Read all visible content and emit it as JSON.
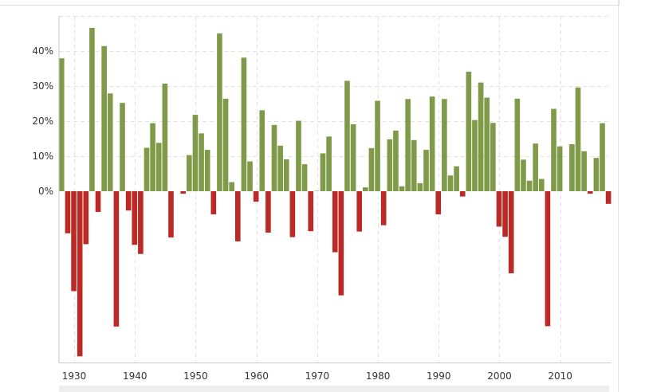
{
  "chart_data": {
    "type": "bar",
    "title": "",
    "xlabel": "",
    "ylabel": "",
    "ylim": [
      -47,
      50
    ],
    "y_ticks": [
      0,
      10,
      20,
      30,
      40
    ],
    "y_tick_labels": [
      "0%",
      "10%",
      "20%",
      "30%",
      "40%"
    ],
    "x_ticks": [
      1930,
      1940,
      1950,
      1960,
      1970,
      1980,
      1990,
      2000,
      2010
    ],
    "x_tick_labels": [
      "1930",
      "1940",
      "1950",
      "1960",
      "1970",
      "1980",
      "1990",
      "2000",
      "2010"
    ],
    "grid": true,
    "colors": {
      "positive": "#7f9a48",
      "negative": "#bb2a25",
      "grid": "#e2e2e2"
    },
    "x": [
      1928,
      1929,
      1930,
      1931,
      1932,
      1933,
      1934,
      1935,
      1936,
      1937,
      1938,
      1939,
      1940,
      1941,
      1942,
      1943,
      1944,
      1945,
      1946,
      1947,
      1948,
      1949,
      1950,
      1951,
      1952,
      1953,
      1954,
      1955,
      1956,
      1957,
      1958,
      1959,
      1960,
      1961,
      1962,
      1963,
      1964,
      1965,
      1966,
      1967,
      1968,
      1969,
      1970,
      1971,
      1972,
      1973,
      1974,
      1975,
      1976,
      1977,
      1978,
      1979,
      1980,
      1981,
      1982,
      1983,
      1984,
      1985,
      1986,
      1987,
      1988,
      1989,
      1990,
      1991,
      1992,
      1993,
      1994,
      1995,
      1996,
      1997,
      1998,
      1999,
      2000,
      2001,
      2002,
      2003,
      2004,
      2005,
      2006,
      2007,
      2008,
      2009,
      2010,
      2011,
      2012,
      2013,
      2014,
      2015,
      2016,
      2017,
      2018
    ],
    "values": [
      37.9,
      -12.0,
      -28.5,
      -47.1,
      -15.1,
      46.6,
      -5.9,
      41.4,
      27.9,
      -38.6,
      25.2,
      -5.5,
      -15.3,
      -17.9,
      12.4,
      19.4,
      13.8,
      30.7,
      -13.2,
      0.0,
      -0.7,
      10.3,
      21.8,
      16.5,
      11.8,
      -6.6,
      45.0,
      26.4,
      2.6,
      -14.3,
      38.1,
      8.5,
      -3.0,
      23.1,
      -11.8,
      18.9,
      13.0,
      9.1,
      -13.1,
      20.1,
      7.7,
      -11.4,
      0.1,
      10.8,
      15.6,
      -17.4,
      -29.7,
      31.5,
      19.1,
      -11.5,
      1.1,
      12.3,
      25.8,
      -9.7,
      14.8,
      17.3,
      1.4,
      26.3,
      14.6,
      2.3,
      11.8,
      27.0,
      -6.6,
      26.3,
      4.5,
      7.1,
      -1.5,
      34.1,
      20.3,
      31.0,
      26.7,
      19.5,
      -10.1,
      -13.0,
      -23.4,
      26.4,
      9.0,
      3.0,
      13.6,
      3.5,
      -38.5,
      23.5,
      12.8,
      0.0,
      13.4,
      29.6,
      11.4,
      -0.7,
      9.5,
      19.4,
      -3.6
    ]
  }
}
